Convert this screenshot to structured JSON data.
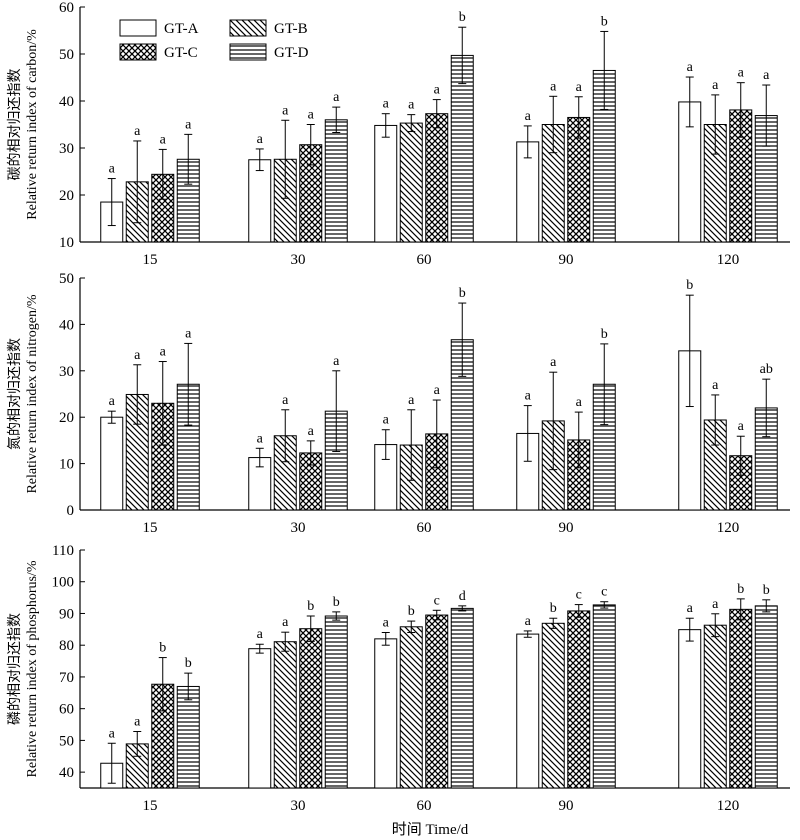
{
  "chart_data": [
    {
      "type": "bar",
      "ylabel_cn": "碳的相对归还指数",
      "ylabel_en": "Relative return index of carbon/%",
      "ylim": [
        10,
        60
      ],
      "yticks": [
        10,
        20,
        30,
        40,
        50,
        60
      ],
      "categories": [
        "15",
        "30",
        "60",
        "90",
        "120"
      ],
      "legend": [
        "GT-A",
        "GT-B",
        "GT-C",
        "GT-D"
      ],
      "legend_position": "top-left",
      "series": [
        {
          "name": "GT-A",
          "values": [
            18.5,
            27.5,
            34.8,
            31.3,
            39.8
          ],
          "errors": [
            5.0,
            2.3,
            2.5,
            3.4,
            5.3
          ],
          "labels": [
            "a",
            "a",
            "a",
            "a",
            "a"
          ]
        },
        {
          "name": "GT-B",
          "values": [
            22.8,
            27.6,
            35.3,
            35.0,
            35.0
          ],
          "errors": [
            8.7,
            8.3,
            1.8,
            6.0,
            6.3
          ],
          "labels": [
            "a",
            "a",
            "a",
            "a",
            "a"
          ]
        },
        {
          "name": "GT-C",
          "values": [
            24.4,
            30.7,
            37.3,
            36.5,
            38.1
          ],
          "errors": [
            5.3,
            4.3,
            3.0,
            4.4,
            5.8
          ],
          "labels": [
            "a",
            "a",
            "a",
            "a",
            "a"
          ]
        },
        {
          "name": "GT-D",
          "values": [
            27.6,
            36.0,
            49.7,
            46.5,
            36.9
          ],
          "errors": [
            5.3,
            2.7,
            6.0,
            8.3,
            6.5
          ],
          "labels": [
            "a",
            "a",
            "b",
            "b",
            "a"
          ]
        }
      ]
    },
    {
      "type": "bar",
      "ylabel_cn": "氮的相对归还指数",
      "ylabel_en": "Relative return index of nitrogen/%",
      "ylim": [
        0,
        50
      ],
      "yticks": [
        0,
        10,
        20,
        30,
        40,
        50
      ],
      "categories": [
        "15",
        "30",
        "60",
        "90",
        "120"
      ],
      "series": [
        {
          "name": "GT-A",
          "values": [
            20.0,
            11.3,
            14.1,
            16.5,
            34.3
          ],
          "errors": [
            1.3,
            2.0,
            3.2,
            6.0,
            12.0
          ],
          "labels": [
            "a",
            "a",
            "a",
            "a",
            "b"
          ]
        },
        {
          "name": "GT-B",
          "values": [
            24.9,
            16.0,
            14.0,
            19.2,
            19.4
          ],
          "errors": [
            6.4,
            5.6,
            7.6,
            10.5,
            5.4
          ],
          "labels": [
            "a",
            "a",
            "a",
            "a",
            "a"
          ]
        },
        {
          "name": "GT-C",
          "values": [
            23.0,
            12.3,
            16.4,
            15.1,
            11.7
          ],
          "errors": [
            9.0,
            2.6,
            7.3,
            6.0,
            4.2
          ],
          "labels": [
            "a",
            "a",
            "a",
            "a",
            "a"
          ]
        },
        {
          "name": "GT-D",
          "values": [
            27.1,
            21.3,
            36.7,
            27.1,
            22.0
          ],
          "errors": [
            8.8,
            8.7,
            7.9,
            8.7,
            6.2
          ],
          "labels": [
            "a",
            "a",
            "b",
            "b",
            "ab"
          ]
        }
      ]
    },
    {
      "type": "bar",
      "ylabel_cn": "磷的相对归还指数",
      "ylabel_en": "Relative return index of phosphorus/%",
      "ylim": [
        35,
        110
      ],
      "yticks": [
        40,
        50,
        60,
        70,
        80,
        90,
        100,
        110
      ],
      "categories": [
        "15",
        "30",
        "60",
        "90",
        "120"
      ],
      "xlabel": "时间 Time/d",
      "series": [
        {
          "name": "GT-A",
          "values": [
            42.8,
            78.9,
            82.0,
            83.5,
            84.9
          ],
          "errors": [
            6.3,
            1.4,
            2.0,
            1.0,
            3.6
          ],
          "labels": [
            "a",
            "a",
            "a",
            "a",
            "a"
          ]
        },
        {
          "name": "GT-B",
          "values": [
            48.9,
            81.1,
            85.8,
            86.9,
            86.3
          ],
          "errors": [
            3.9,
            3.0,
            1.8,
            1.6,
            3.6
          ],
          "labels": [
            "a",
            "a",
            "b",
            "b",
            "a"
          ]
        },
        {
          "name": "GT-C",
          "values": [
            67.7,
            85.2,
            89.5,
            90.8,
            91.3
          ],
          "errors": [
            8.4,
            4.0,
            1.5,
            2.0,
            3.3
          ],
          "labels": [
            "b",
            "b",
            "c",
            "c",
            "b"
          ]
        },
        {
          "name": "GT-D",
          "values": [
            67.0,
            89.2,
            91.6,
            92.7,
            92.4
          ],
          "errors": [
            4.2,
            1.3,
            0.8,
            1.0,
            1.9
          ],
          "labels": [
            "b",
            "b",
            "d",
            "c",
            "b"
          ]
        }
      ]
    }
  ]
}
